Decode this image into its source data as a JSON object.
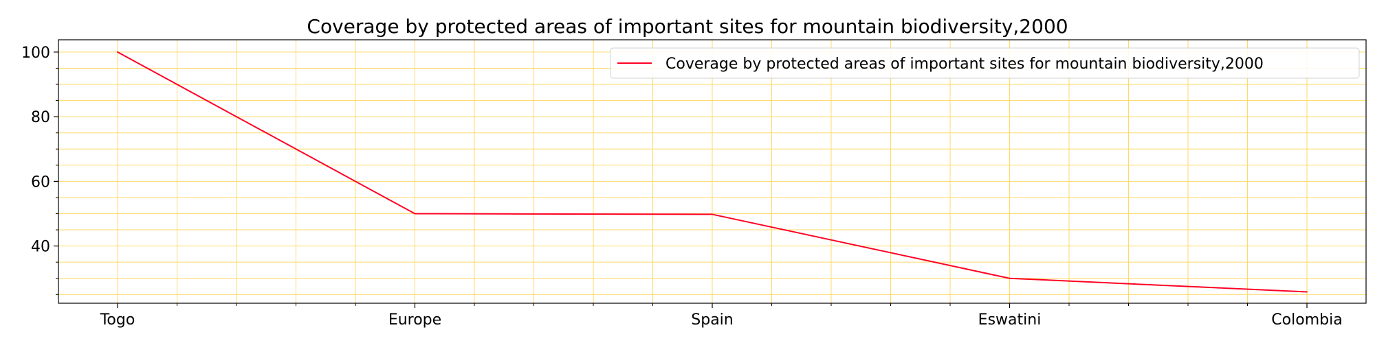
{
  "chart_data": {
    "type": "line",
    "title": "Coverage by protected areas of important sites for mountain biodiversity,2000",
    "xlabel": "",
    "ylabel": "",
    "categories": [
      "Togo",
      "Europe",
      "Spain",
      "Eswatini",
      "Colombia"
    ],
    "series": [
      {
        "name": "Coverage by protected areas of important sites for mountain biodiversity,2000",
        "values": [
          100,
          50,
          49.8,
          30,
          25.8
        ],
        "color": "#ff0022"
      }
    ],
    "ylim": [
      22.3,
      103.8
    ],
    "yticks": [
      40,
      60,
      80,
      100
    ],
    "yticks_minor": [
      25,
      30,
      35,
      45,
      50,
      55,
      65,
      70,
      75,
      85,
      90,
      95
    ],
    "grid": true,
    "grid_color": "#ffd966",
    "legend_position": "top-right"
  }
}
